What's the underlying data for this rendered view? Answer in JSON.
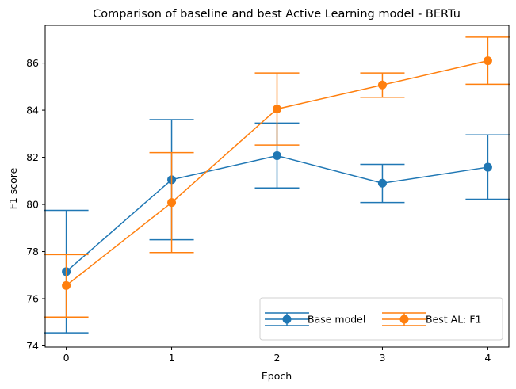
{
  "chart_data": {
    "type": "line",
    "title": "Comparison of baseline and best Active Learning model - BERTu",
    "xlabel": "Epoch",
    "ylabel": "F1 score",
    "x": [
      0,
      1,
      2,
      3,
      4
    ],
    "x_tick_labels": [
      "0",
      "1",
      "2",
      "3",
      "4"
    ],
    "xlim": [
      -0.2,
      4.2
    ],
    "ylim": [
      73.95,
      87.6
    ],
    "y_ticks": [
      74,
      76,
      78,
      80,
      82,
      84,
      86
    ],
    "y_tick_labels": [
      "74",
      "76",
      "78",
      "80",
      "82",
      "84",
      "86"
    ],
    "grid": false,
    "legend_position": "lower-right",
    "series": [
      {
        "name": "Base model",
        "color": "#1f77b4",
        "values": [
          77.15,
          81.05,
          82.07,
          80.9,
          81.58
        ],
        "error_lower": [
          74.55,
          78.5,
          80.7,
          80.08,
          80.22
        ],
        "error_upper": [
          79.75,
          83.6,
          83.45,
          81.7,
          82.95
        ]
      },
      {
        "name": "Best AL: F1",
        "color": "#ff7f0e",
        "values": [
          76.56,
          80.08,
          84.05,
          85.07,
          86.1
        ],
        "error_lower": [
          75.22,
          77.96,
          82.52,
          84.55,
          85.1
        ],
        "error_upper": [
          77.87,
          82.2,
          85.58,
          85.58,
          87.1
        ]
      }
    ]
  }
}
